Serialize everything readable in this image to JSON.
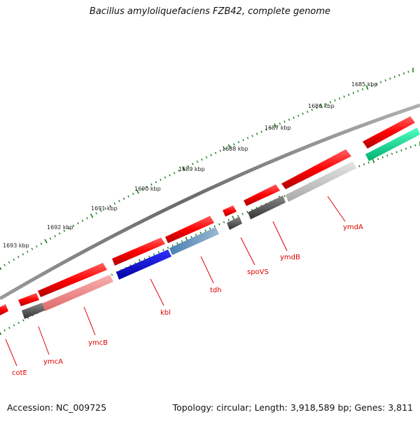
{
  "map": {
    "title": "Bacillus amyloliquefaciens FZB42, complete genome",
    "accession": "Accession: NC_009725",
    "summary": "Topology: circular; Length: 3,918,589 bp; Genes: 3,811",
    "kbp_labels": [
      "1685 kbp",
      "1686 kbp",
      "1687 kbp",
      "1688 kbp",
      "1689 kbp",
      "1690 kbp",
      "1691 kbp",
      "1692 kbp",
      "1693 kbp"
    ],
    "genes": [
      "ymdA",
      "ymdB",
      "spoVS",
      "tdh",
      "kbl",
      "ymcB",
      "ymcA",
      "cotE"
    ],
    "colors": {
      "backbone": "#8a8a8a",
      "cds": "#ff0000",
      "ticks": "#1a7a1a",
      "label": "#e00000",
      "blue": "#0000e0",
      "steelblue": "#4a7fb5",
      "teal": "#00e08a",
      "darkgray": "#555555",
      "lightgray": "#c4c4c4",
      "pink": "#f08a8a"
    }
  }
}
